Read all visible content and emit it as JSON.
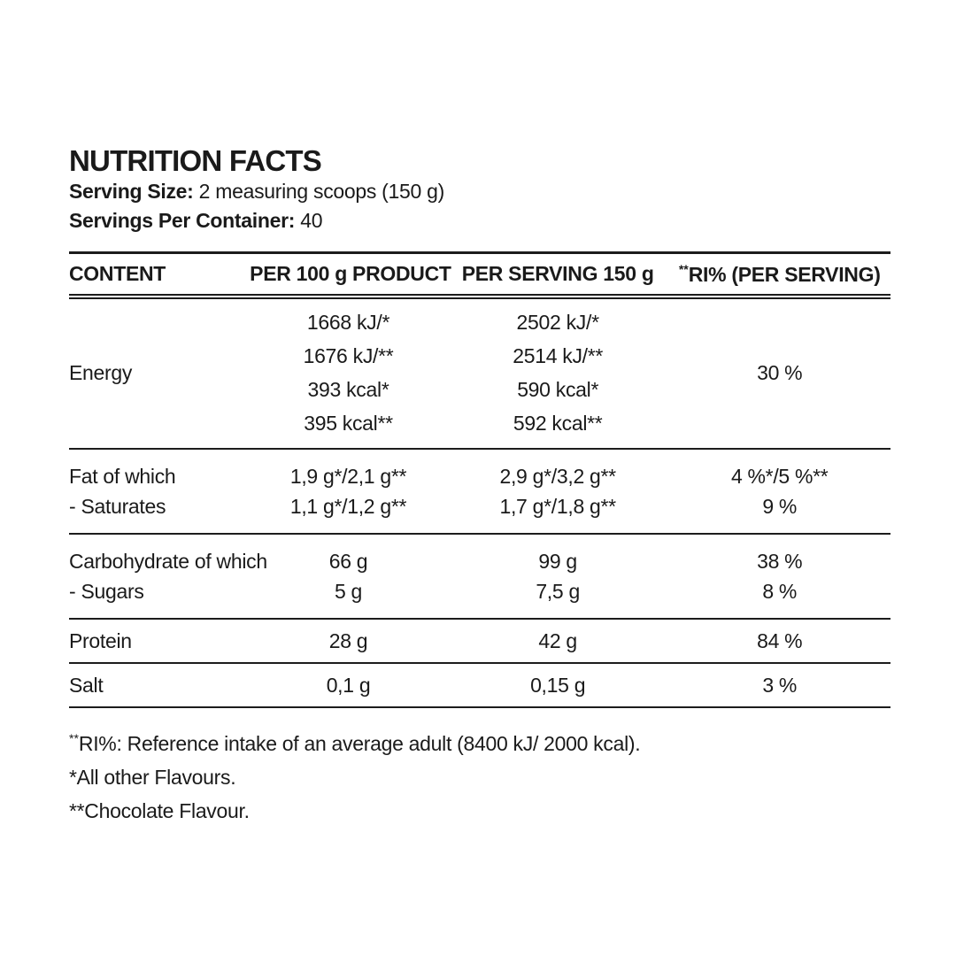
{
  "colors": {
    "text": "#1a1a1a",
    "background": "#ffffff"
  },
  "title": "NUTRITION FACTS",
  "serving_size": {
    "label": "Serving Size:",
    "value": "2 measuring scoops (150 g)"
  },
  "servings_per_container": {
    "label": "Servings Per Container:",
    "value": "40"
  },
  "table": {
    "headers": {
      "content": "CONTENT",
      "per100": "PER 100 g PRODUCT",
      "per_serving": "PER SERVING 150 g",
      "ri_sup": "**",
      "ri_label": "RI% (PER SERVING)"
    },
    "energy": {
      "label": "Energy",
      "per100": [
        "1668 kJ/*",
        "1676 kJ/**",
        "393 kcal*",
        "395 kcal**"
      ],
      "per_serving": [
        "2502 kJ/*",
        "2514 kJ/**",
        "590 kcal*",
        "592 kcal**"
      ],
      "ri": "30 %"
    },
    "fat": {
      "label": "Fat of which",
      "per100": "1,9 g*/2,1 g**",
      "per_serving": "2,9 g*/3,2 g**",
      "ri": "4 %*/5 %**"
    },
    "saturates": {
      "label": "- Saturates",
      "per100": "1,1 g*/1,2 g**",
      "per_serving": "1,7 g*/1,8 g**",
      "ri": "9 %"
    },
    "carbohydrate": {
      "label": "Carbohydrate of which",
      "per100": "66 g",
      "per_serving": "99 g",
      "ri": "38 %"
    },
    "sugars": {
      "label": "- Sugars",
      "per100": "5 g",
      "per_serving": "7,5 g",
      "ri": "8 %"
    },
    "protein": {
      "label": "Protein",
      "per100": "28 g",
      "per_serving": "42 g",
      "ri": "84 %"
    },
    "salt": {
      "label": "Salt",
      "per100": "0,1 g",
      "per_serving": "0,15 g",
      "ri": "3 %"
    }
  },
  "footnotes": {
    "ri_sup": "**",
    "ri_text": "RI%: Reference intake of an average adult (8400 kJ/ 2000 kcal).",
    "note_all_flavours": "*All other Flavours.",
    "note_chocolate": "**Chocolate Flavour."
  }
}
